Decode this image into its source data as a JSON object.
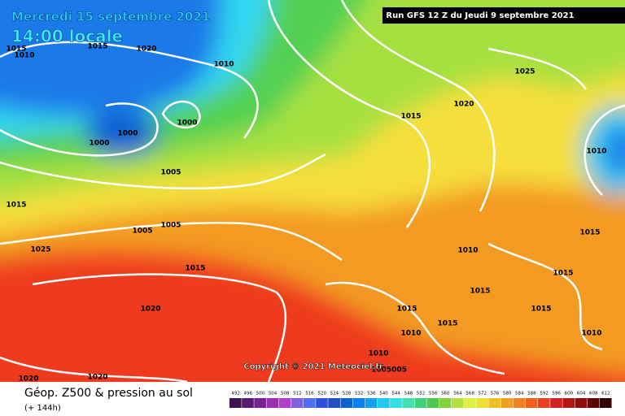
{
  "header": {
    "title": "Mercredi 15 septembre 2021",
    "subtitle": "14:00 locale",
    "run": "Run GFS 12 Z du Jeudi 9 septembre 2021"
  },
  "isobar_labels": [
    "1015",
    "1010",
    "1015",
    "1020",
    "1010",
    "1000",
    "1000",
    "1000",
    "1005",
    "1005",
    "1005",
    "1025",
    "1015",
    "1020",
    "1015",
    "1015",
    "1020",
    "1025",
    "1010",
    "1015",
    "1010",
    "1015",
    "1015",
    "1015",
    "1015",
    "1015",
    "1010",
    "1010",
    "1010",
    "1005005",
    "1020",
    "1020"
  ],
  "copyright": "Copyright © 2021 Meteociel.fr",
  "footer": {
    "title": "Géop. Z500 & pression au sol",
    "lead": "(+ 144h)"
  },
  "scale": {
    "values": [
      492,
      496,
      500,
      504,
      508,
      512,
      516,
      520,
      524,
      528,
      532,
      536,
      540,
      544,
      548,
      552,
      556,
      560,
      564,
      568,
      572,
      576,
      580,
      584,
      588,
      592,
      596,
      600,
      604,
      608,
      612
    ],
    "colors": [
      "#3d1450",
      "#5a1a70",
      "#7a2090",
      "#9a30b0",
      "#b040c8",
      "#8060e0",
      "#5070f0",
      "#3050e0",
      "#2050c0",
      "#1060d0",
      "#1080f0",
      "#10a0f0",
      "#20c8f0",
      "#30e0e0",
      "#40e0b0",
      "#40d080",
      "#50c850",
      "#80d040",
      "#b0e040",
      "#e0f040",
      "#f0e030",
      "#f0c020",
      "#f0a020",
      "#f08020",
      "#f06020",
      "#e84020",
      "#d02020",
      "#b01818",
      "#901010",
      "#600808",
      "#300000"
    ]
  }
}
